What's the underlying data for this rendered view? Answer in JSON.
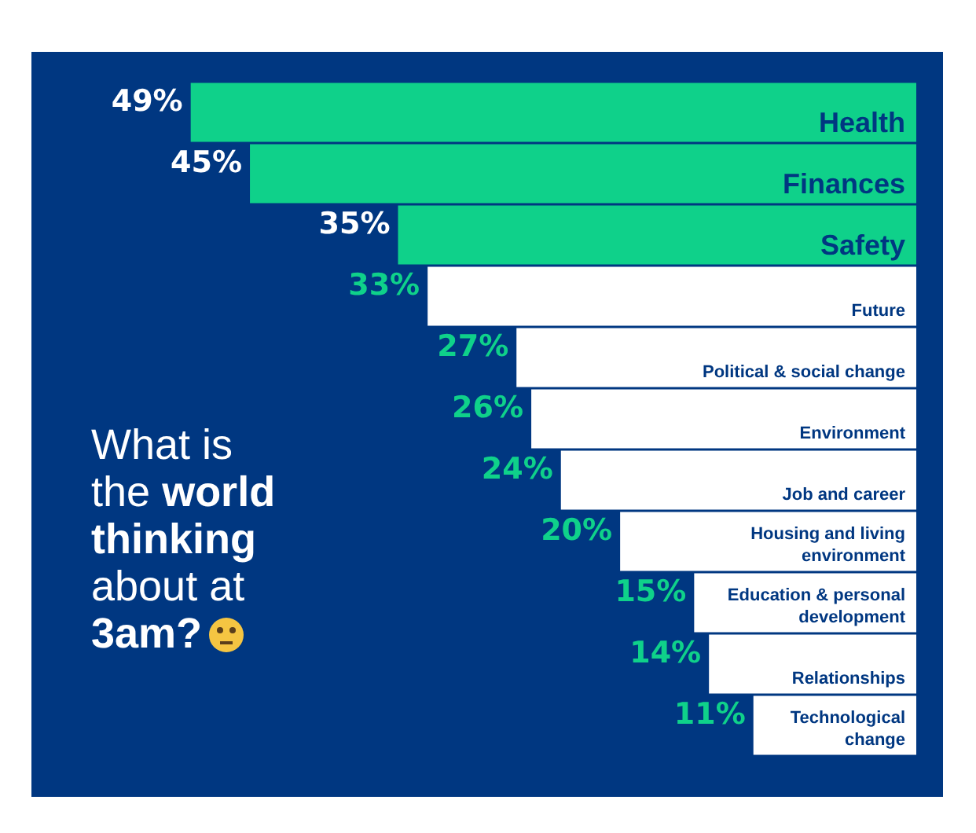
{
  "chart_data": {
    "type": "bar",
    "orientation": "horizontal",
    "title": "What is the world thinking about at 3am?",
    "categories": [
      "Health",
      "Finances",
      "Safety",
      "Future",
      "Political & social change",
      "Environment",
      "Job and career",
      "Housing and living environment",
      "Education & personal development",
      "Relationships",
      "Technological change"
    ],
    "values": [
      49,
      45,
      35,
      33,
      27,
      26,
      24,
      20,
      15,
      14,
      11
    ],
    "colors": [
      "#0fd18a",
      "#0fd18a",
      "#0fd18a",
      "#ffffff",
      "#ffffff",
      "#ffffff",
      "#ffffff",
      "#ffffff",
      "#ffffff",
      "#ffffff",
      "#ffffff"
    ],
    "value_labels": [
      "49%",
      "45%",
      "35%",
      "33%",
      "27%",
      "26%",
      "24%",
      "20%",
      "15%",
      "14%",
      "11%"
    ],
    "tick_labels": false,
    "legend": false
  }
}
